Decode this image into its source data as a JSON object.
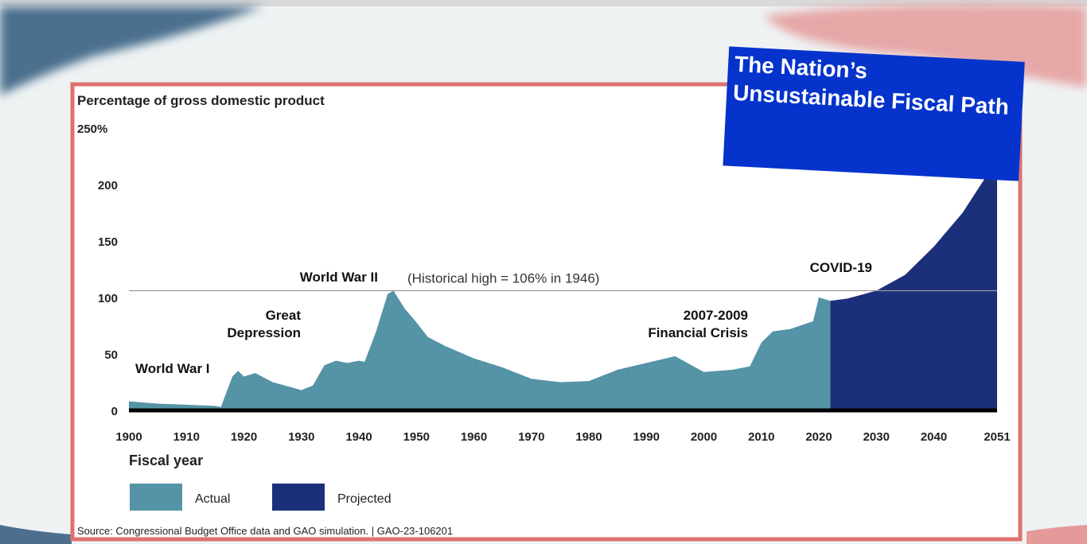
{
  "chart_data": {
    "type": "area",
    "banner": "The Nation’s Unsustainable Fiscal Path",
    "y_axis_label": "Percentage of gross domestic product",
    "x_axis_label": "Fiscal year",
    "source": "Source: Congressional Budget Office data and GAO simulation.  |  GAO-23-106201",
    "x": [
      1900,
      1905,
      1910,
      1915,
      1916,
      1918,
      1919,
      1920,
      1922,
      1925,
      1930,
      1932,
      1934,
      1936,
      1938,
      1940,
      1941,
      1943,
      1945,
      1946,
      1948,
      1950,
      1952,
      1955,
      1960,
      1965,
      1970,
      1975,
      1980,
      1985,
      1990,
      1995,
      2000,
      2005,
      2008,
      2010,
      2012,
      2015,
      2019,
      2020,
      2022,
      2025,
      2030,
      2035,
      2040,
      2045,
      2051
    ],
    "series": [
      {
        "name": "Actual",
        "color": "#5593a7",
        "values": [
          8,
          6,
          5,
          4,
          3,
          30,
          35,
          30,
          33,
          25,
          18,
          22,
          40,
          44,
          42,
          44,
          43,
          70,
          103,
          106,
          90,
          78,
          65,
          57,
          46,
          38,
          28,
          25,
          26,
          36,
          42,
          48,
          34,
          36,
          39,
          60,
          70,
          72,
          79,
          100,
          97,
          null,
          null,
          null,
          null,
          null,
          null
        ]
      },
      {
        "name": "Projected",
        "color": "#1c2f7a",
        "values": [
          null,
          null,
          null,
          null,
          null,
          null,
          null,
          null,
          null,
          null,
          null,
          null,
          null,
          null,
          null,
          null,
          null,
          null,
          null,
          null,
          null,
          null,
          null,
          null,
          null,
          null,
          null,
          null,
          null,
          null,
          null,
          null,
          null,
          null,
          null,
          null,
          null,
          null,
          null,
          null,
          97,
          99,
          106,
          120,
          145,
          175,
          222
        ]
      }
    ],
    "reference_line": {
      "value": 106,
      "label": "(Historical high = 106% in 1946)"
    },
    "annotations": [
      [
        "World War I"
      ],
      [
        "Great",
        "Depression"
      ],
      [
        "World War II"
      ],
      [
        "2007-2009",
        "Financial Crisis"
      ],
      [
        "COVID-19"
      ]
    ],
    "xlim": [
      1900,
      2051
    ],
    "ylim": [
      0,
      250
    ],
    "xticks": [
      1900,
      1910,
      1920,
      1930,
      1940,
      1950,
      1960,
      1970,
      1980,
      1990,
      2000,
      2010,
      2020,
      2030,
      2040,
      2051
    ],
    "yticks": [
      0,
      50,
      100,
      150,
      200,
      {
        "value": 250,
        "label": "250%"
      }
    ]
  }
}
